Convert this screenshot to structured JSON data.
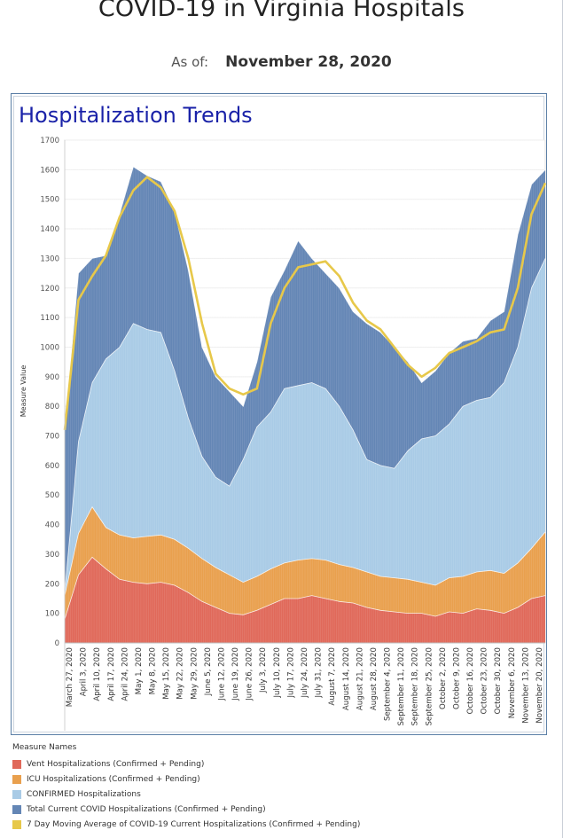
{
  "header": {
    "title": "COVID-19 in Virginia Hospitals",
    "as_of_label": "As of:",
    "as_of_date": "November 28, 2020"
  },
  "panel": {
    "title": "Hospitalization Trends"
  },
  "legend": {
    "title": "Measure Names",
    "items": [
      {
        "label": "Vent Hospitalizations (Confirmed + Pending)",
        "color": "#e0695a"
      },
      {
        "label": "ICU Hospitalizations (Confirmed + Pending)",
        "color": "#e9a04e"
      },
      {
        "label": "CONFIRMED Hospitalizations",
        "color": "#a9cbe6"
      },
      {
        "label": "Total Current COVID Hospitalizations (Confirmed + Pending)",
        "color": "#6486b5"
      },
      {
        "label": "7 Day Moving Average of COVID-19 Current Hospitalizations (Confirmed + Pending)",
        "color": "#e7c84a"
      }
    ]
  },
  "chart_data": {
    "type": "area",
    "ylabel": "Measure Value",
    "ylim": [
      0,
      1700
    ],
    "yticks": [
      0,
      100,
      200,
      300,
      400,
      500,
      600,
      700,
      800,
      900,
      1000,
      1100,
      1200,
      1300,
      1400,
      1500,
      1600,
      1700
    ],
    "xticks": [
      "March 27, 2020",
      "April 3, 2020",
      "April 10, 2020",
      "April 17, 2020",
      "April 24, 2020",
      "May 1, 2020",
      "May 8, 2020",
      "May 15, 2020",
      "May 22, 2020",
      "May 29, 2020",
      "June 5, 2020",
      "June 12, 2020",
      "June 19, 2020",
      "June 26, 2020",
      "July 3, 2020",
      "July 10, 2020",
      "July 17, 2020",
      "July 24, 2020",
      "July 31, 2020",
      "August 7, 2020",
      "August 14, 2020",
      "August 21, 2020",
      "August 28, 2020",
      "September 4, 2020",
      "September 11, 2020",
      "September 18, 2020",
      "September 25, 2020",
      "October 2, 2020",
      "October 9, 2020",
      "October 16, 2020",
      "October 23, 2020",
      "October 30, 2020",
      "November 6, 2020",
      "November 13, 2020",
      "November 20, 2020"
    ],
    "series": [
      {
        "name": "Vent Hospitalizations (Confirmed + Pending)",
        "values": [
          80,
          230,
          290,
          250,
          215,
          205,
          200,
          205,
          195,
          170,
          140,
          120,
          100,
          95,
          110,
          130,
          150,
          150,
          160,
          150,
          140,
          135,
          120,
          110,
          105,
          100,
          100,
          90,
          105,
          100,
          115,
          110,
          100,
          120,
          150,
          160
        ]
      },
      {
        "name": "ICU Hospitalizations (Confirmed + Pending)",
        "values": [
          160,
          370,
          460,
          390,
          365,
          355,
          360,
          365,
          350,
          320,
          285,
          255,
          230,
          205,
          225,
          250,
          270,
          280,
          285,
          280,
          265,
          255,
          240,
          225,
          220,
          215,
          205,
          195,
          220,
          225,
          240,
          245,
          235,
          270,
          320,
          375
        ]
      },
      {
        "name": "CONFIRMED Hospitalizations",
        "values": [
          170,
          680,
          880,
          960,
          1000,
          1080,
          1060,
          1050,
          920,
          760,
          630,
          560,
          530,
          620,
          730,
          780,
          860,
          870,
          880,
          860,
          800,
          720,
          620,
          600,
          590,
          650,
          690,
          700,
          740,
          800,
          820,
          830,
          880,
          1000,
          1200,
          1300
        ]
      },
      {
        "name": "Total Current COVID Hospitalizations (Confirmed + Pending)",
        "values": [
          720,
          1250,
          1300,
          1310,
          1450,
          1610,
          1580,
          1560,
          1460,
          1260,
          1000,
          900,
          850,
          800,
          950,
          1170,
          1260,
          1360,
          1300,
          1250,
          1200,
          1120,
          1080,
          1050,
          1000,
          950,
          880,
          920,
          980,
          1020,
          1030,
          1090,
          1120,
          1380,
          1550,
          1600
        ]
      },
      {
        "name": "7 Day Moving Average of COVID-19 Current Hospitalizations (Confirmed + Pending)",
        "values": [
          720,
          1160,
          1240,
          1310,
          1440,
          1530,
          1575,
          1540,
          1460,
          1300,
          1080,
          910,
          860,
          840,
          860,
          1080,
          1200,
          1270,
          1280,
          1290,
          1240,
          1150,
          1090,
          1060,
          1000,
          940,
          900,
          930,
          980,
          1000,
          1020,
          1050,
          1060,
          1200,
          1450,
          1555
        ]
      }
    ],
    "colors": {
      "vent": "#e0695a",
      "icu": "#e9a04e",
      "confirmed": "#a9cbe6",
      "total": "#6486b5",
      "average": "#e7c84a"
    },
    "grid": true,
    "legend_position": "bottom-left"
  }
}
